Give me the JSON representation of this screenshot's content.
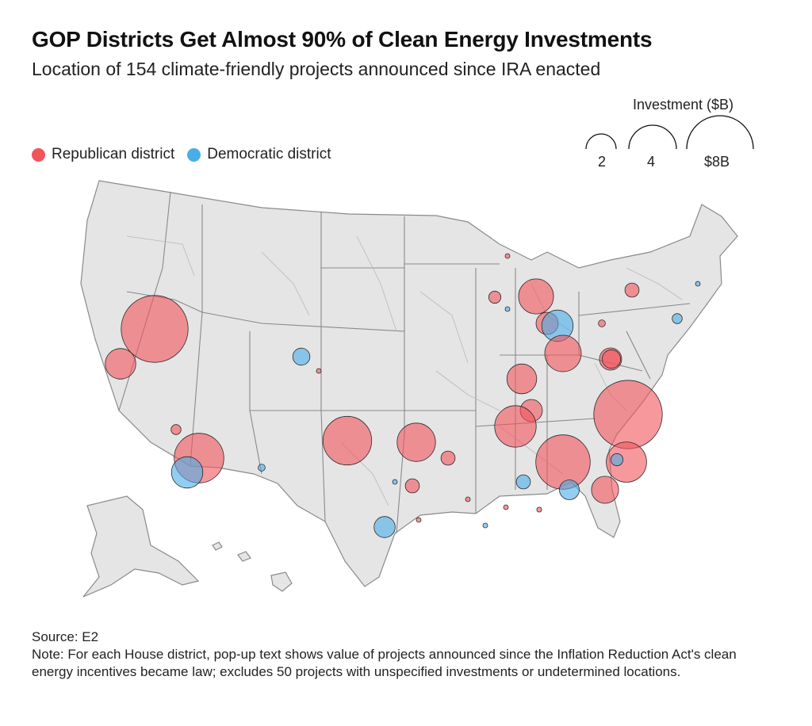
{
  "header": {
    "title": "GOP Districts Get Almost 90% of Clean Energy Investments",
    "subtitle": "Location of 154 climate-friendly projects announced since IRA enacted"
  },
  "legend": {
    "republican_label": "Republican district",
    "democratic_label": "Democratic district",
    "republican_color": "#f2545b",
    "democratic_color": "#49aee8"
  },
  "size_legend": {
    "title": "Investment ($B)",
    "labels": [
      "2",
      "4",
      "$8B"
    ]
  },
  "footer": {
    "source": "Source: E2",
    "note": "Note: For each House district, pop-up text shows value of projects announced since the Inflation Reduction Act's clean energy incentives became law; excludes 50 projects with unspecified investments or undetermined locations."
  },
  "colors": {
    "land": "#e5e5e5",
    "state_border": "#8a8a8a",
    "district_border": "#b8b8b8"
  },
  "bubbles": [
    {
      "party": "R",
      "region": "northern-nevada",
      "investment_b": 9.1
    },
    {
      "party": "R",
      "region": "northern-california",
      "investment_b": 1.9
    },
    {
      "party": "R",
      "region": "southern-nevada",
      "investment_b": 0.2
    },
    {
      "party": "R",
      "region": "arizona",
      "investment_b": 5.0
    },
    {
      "party": "D",
      "region": "southern-arizona",
      "investment_b": 2.0
    },
    {
      "party": "D",
      "region": "new-mexico",
      "investment_b": 0.1
    },
    {
      "party": "D",
      "region": "northern-colorado",
      "investment_b": 0.6
    },
    {
      "party": "R",
      "region": "colorado",
      "investment_b": 0.04
    },
    {
      "party": "R",
      "region": "oklahoma-west",
      "investment_b": 4.8
    },
    {
      "party": "R",
      "region": "oklahoma-east",
      "investment_b": 3.0
    },
    {
      "party": "R",
      "region": "arkansas",
      "investment_b": 0.4
    },
    {
      "party": "D",
      "region": "dallas",
      "investment_b": 0.02
    },
    {
      "party": "R",
      "region": "east-texas",
      "investment_b": 0.4
    },
    {
      "party": "D",
      "region": "austin",
      "investment_b": 0.9
    },
    {
      "party": "R",
      "region": "south-texas",
      "investment_b": 0.04
    },
    {
      "party": "R",
      "region": "louisiana",
      "investment_b": 0.04
    },
    {
      "party": "R",
      "region": "mississippi-south",
      "investment_b": 0.04
    },
    {
      "party": "D",
      "region": "new-orleans",
      "investment_b": 0.02
    },
    {
      "party": "R",
      "region": "northern-minnesota",
      "investment_b": 0.02
    },
    {
      "party": "R",
      "region": "wisconsin",
      "investment_b": 0.3
    },
    {
      "party": "D",
      "region": "green-bay",
      "investment_b": 0.02
    },
    {
      "party": "R",
      "region": "western-michigan",
      "investment_b": 2.5
    },
    {
      "party": "R",
      "region": "michigan-central",
      "investment_b": 1.0
    },
    {
      "party": "D",
      "region": "detroit",
      "investment_b": 2.0
    },
    {
      "party": "R",
      "region": "indiana",
      "investment_b": 2.7
    },
    {
      "party": "R",
      "region": "ohio",
      "investment_b": 1.0
    },
    {
      "party": "R",
      "region": "illinois-south",
      "investment_b": 1.8
    },
    {
      "party": "R",
      "region": "kentucky",
      "investment_b": 1.0
    },
    {
      "party": "R",
      "region": "west-virginia",
      "investment_b": 0.7
    },
    {
      "party": "R",
      "region": "pennsylvania",
      "investment_b": 0.1
    },
    {
      "party": "R",
      "region": "new-york",
      "investment_b": 0.4
    },
    {
      "party": "D",
      "region": "new-jersey",
      "investment_b": 0.2
    },
    {
      "party": "D",
      "region": "new-england",
      "investment_b": 0.02
    },
    {
      "party": "R",
      "region": "north-carolina",
      "investment_b": 9.5
    },
    {
      "party": "R",
      "region": "tennessee",
      "investment_b": 3.5
    },
    {
      "party": "R",
      "region": "georgia",
      "investment_b": 6.0
    },
    {
      "party": "R",
      "region": "south-carolina",
      "investment_b": 3.3
    },
    {
      "party": "D",
      "region": "atlanta",
      "investment_b": 0.4
    },
    {
      "party": "D",
      "region": "savannah",
      "investment_b": 0.8
    },
    {
      "party": "D",
      "region": "alabama",
      "investment_b": 0.3
    },
    {
      "party": "R",
      "region": "florida-north",
      "investment_b": 1.5
    },
    {
      "party": "R",
      "region": "alabama-south",
      "investment_b": 0.05
    }
  ]
}
